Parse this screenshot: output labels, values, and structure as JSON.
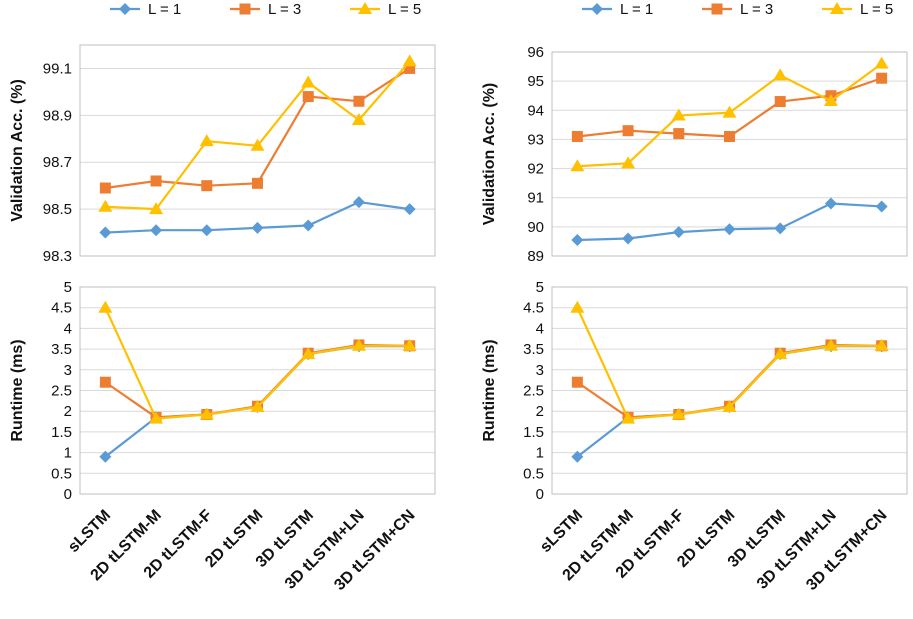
{
  "legend": [
    {
      "name": "L = 1",
      "color": "#5B9BD5",
      "marker": "diamond"
    },
    {
      "name": "L = 3",
      "color": "#ED7D31",
      "marker": "square"
    },
    {
      "name": "L = 5",
      "color": "#FFC000",
      "marker": "triangle"
    }
  ],
  "categories": [
    "sLSTM",
    "2D tLSTM-M",
    "2D tLSTM-F",
    "2D tLSTM",
    "3D tLSTM",
    "3D tLSTM+LN",
    "3D tLSTM+CN"
  ],
  "chart_data": [
    {
      "type": "line",
      "ylabel": "Validation Acc. (%)",
      "ylim": [
        98.3,
        99.2
      ],
      "yticks": [
        "98.3",
        "98.5",
        "98.7",
        "98.9",
        "99.1"
      ],
      "grid": true,
      "legend_position": "top",
      "series": [
        {
          "name": "L = 1",
          "values": [
            98.4,
            98.41,
            98.41,
            98.42,
            98.43,
            98.53,
            98.5
          ]
        },
        {
          "name": "L = 3",
          "values": [
            98.59,
            98.62,
            98.6,
            98.61,
            98.98,
            98.96,
            99.1
          ]
        },
        {
          "name": "L = 5",
          "values": [
            98.51,
            98.5,
            98.79,
            98.77,
            99.04,
            98.88,
            99.13
          ]
        }
      ]
    },
    {
      "type": "line",
      "ylabel": "Validation Acc. (%)",
      "ylim": [
        89,
        96
      ],
      "yticks": [
        "89",
        "90",
        "91",
        "92",
        "93",
        "94",
        "95",
        "96"
      ],
      "grid": true,
      "legend_position": "top",
      "series": [
        {
          "name": "L = 1",
          "values": [
            89.55,
            89.6,
            89.82,
            89.92,
            89.95,
            90.8,
            90.7
          ]
        },
        {
          "name": "L = 3",
          "values": [
            93.1,
            93.3,
            93.2,
            93.1,
            94.3,
            94.5,
            95.1
          ]
        },
        {
          "name": "L = 5",
          "values": [
            92.08,
            92.18,
            93.82,
            93.92,
            95.2,
            94.32,
            95.6
          ]
        }
      ]
    },
    {
      "type": "line",
      "ylabel": "Runtime (ms)",
      "ylim": [
        0,
        5
      ],
      "yticks": [
        "0",
        "0.5",
        "1",
        "1.5",
        "2",
        "2.5",
        "3",
        "3.5",
        "4",
        "4.5",
        "5"
      ],
      "grid": true,
      "series": [
        {
          "name": "L = 1",
          "values": [
            0.9,
            1.85,
            1.92,
            2.1,
            3.38,
            3.57,
            3.57
          ]
        },
        {
          "name": "L = 3",
          "values": [
            2.7,
            1.85,
            1.92,
            2.12,
            3.4,
            3.6,
            3.58
          ]
        },
        {
          "name": "L = 5",
          "values": [
            4.5,
            1.82,
            1.92,
            2.1,
            3.38,
            3.58,
            3.58
          ]
        }
      ]
    },
    {
      "type": "line",
      "ylabel": "Runtime (ms)",
      "ylim": [
        0,
        5
      ],
      "yticks": [
        "0",
        "0.5",
        "1",
        "1.5",
        "2",
        "2.5",
        "3",
        "3.5",
        "4",
        "4.5",
        "5"
      ],
      "grid": true,
      "series": [
        {
          "name": "L = 1",
          "values": [
            0.9,
            1.85,
            1.92,
            2.1,
            3.38,
            3.57,
            3.57
          ]
        },
        {
          "name": "L = 3",
          "values": [
            2.7,
            1.85,
            1.92,
            2.12,
            3.4,
            3.6,
            3.58
          ]
        },
        {
          "name": "L = 5",
          "values": [
            4.5,
            1.82,
            1.92,
            2.1,
            3.38,
            3.58,
            3.58
          ]
        }
      ]
    }
  ]
}
